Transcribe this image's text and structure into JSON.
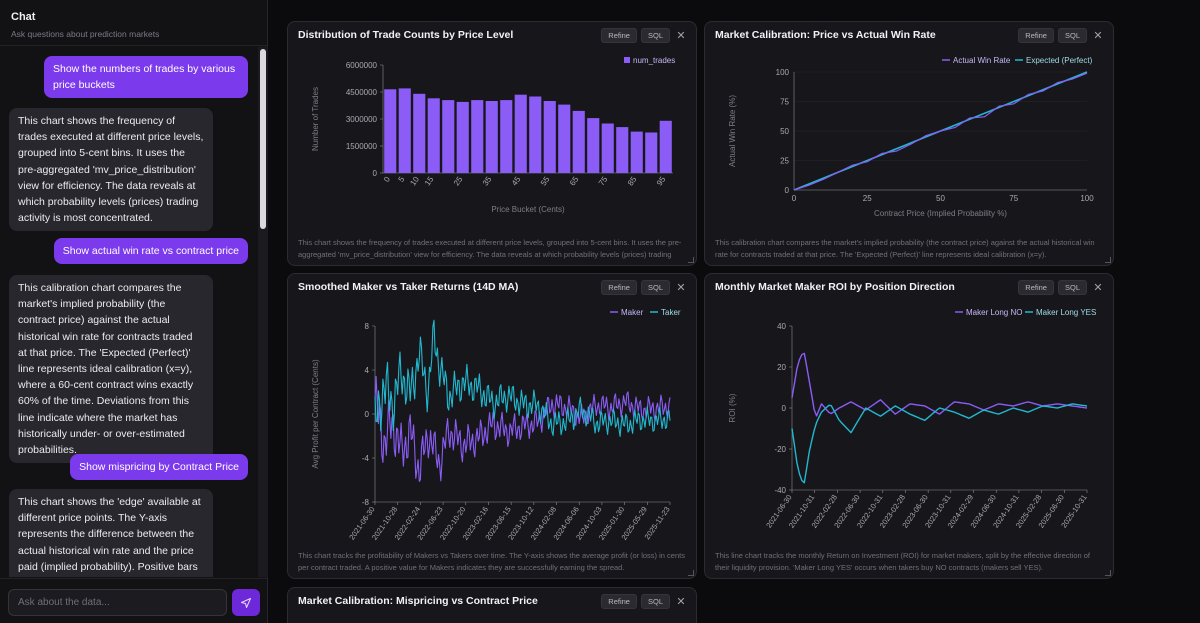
{
  "chat": {
    "title": "Chat",
    "subtitle": "Ask questions about prediction markets",
    "input_placeholder": "Ask about the data...",
    "messages": [
      {
        "role": "user",
        "text": "Show the numbers of trades by various price buckets"
      },
      {
        "role": "assistant",
        "text": "This chart shows the frequency of trades executed at different price levels, grouped into 5-cent bins. It uses the pre-aggregated 'mv_price_distribution' view for efficiency. The data reveals at which probability levels (prices) trading activity is most concentrated."
      },
      {
        "role": "user",
        "text": "Show actual win rate vs contract price"
      },
      {
        "role": "assistant",
        "text": "This calibration chart compares the market's implied probability (the contract price) against the actual historical win rate for contracts traded at that price. The 'Expected (Perfect)' line represents ideal calibration (x=y), where a 60-cent contract wins exactly 60% of the time. Deviations from this line indicate where the market has historically under- or over-estimated probabilities."
      },
      {
        "role": "user",
        "text": "Show mispricing by Contract Price"
      },
      {
        "role": "assistant",
        "text": "This chart shows the 'edge' available at different price points. The Y-axis represents the difference between the actual historical win rate and the price paid (implied probability). Positive bars indicate underpriced contracts, which"
      }
    ]
  },
  "panel_buttons": {
    "refine": "Refine",
    "sql": "SQL",
    "close": "✕"
  },
  "panels": [
    {
      "title": "Distribution of Trade Counts by Price Level",
      "description": "This chart shows the frequency of trades executed at different price levels, grouped into 5-cent bins. It uses the pre-aggregated 'mv_price_distribution' view for efficiency. The data reveals at which probability levels (prices) trading activity is most concentrated."
    },
    {
      "title": "Market Calibration: Price vs Actual Win Rate",
      "description": "This calibration chart compares the market's implied probability (the contract price) against the actual historical win rate for contracts traded at that price. The 'Expected (Perfect)' line represents ideal calibration (x=y)."
    },
    {
      "title": "Smoothed Maker vs Taker Returns (14D MA)",
      "description": "This chart tracks the profitability of Makers vs Takers over time. The Y-axis shows the average profit (or loss) in cents per contract traded. A positive value for Makers indicates they are successfully earning the spread."
    },
    {
      "title": "Monthly Market Maker ROI by Position Direction",
      "description": "This line chart tracks the monthly Return on Investment (ROI) for market makers, split by the effective direction of their liquidity provision. 'Maker Long YES' occurs when takers buy NO contracts (makers sell YES)."
    },
    {
      "title": "Market Calibration: Mispricing vs Contract Price",
      "description": ""
    }
  ],
  "colors": {
    "purple": "#8b5cf6",
    "cyan": "#22b8cf",
    "accent": "#7c3aed"
  },
  "chart_data": [
    {
      "type": "bar",
      "title": "Distribution of Trade Counts by Price Level",
      "xlabel": "Price Bucket (Cents)",
      "ylabel": "Number of Trades",
      "legend": [
        "num_trades"
      ],
      "categories": [
        "0",
        "5",
        "10",
        "15",
        "20",
        "25",
        "30",
        "35",
        "40",
        "45",
        "50",
        "55",
        "60",
        "65",
        "70",
        "75",
        "80",
        "85",
        "90",
        "95"
      ],
      "tick_labels": [
        "0",
        "5",
        "10",
        "15",
        "25",
        "35",
        "45",
        "55",
        "65",
        "75",
        "85",
        "95"
      ],
      "yticks": [
        "0",
        "1500000",
        "3000000",
        "4500000",
        "6000000"
      ],
      "values": [
        4650000,
        4700000,
        4400000,
        4150000,
        4050000,
        3950000,
        4050000,
        4000000,
        4050000,
        4350000,
        4250000,
        4000000,
        3800000,
        3450000,
        3050000,
        2750000,
        2550000,
        2300000,
        2250000,
        2900000
      ],
      "ylim": [
        0,
        6000000
      ]
    },
    {
      "type": "line",
      "title": "Market Calibration: Price vs Actual Win Rate",
      "xlabel": "Contract Price (Implied Probability %)",
      "ylabel": "Actual Win Rate (%)",
      "xticks": [
        "0",
        "25",
        "50",
        "75",
        "100"
      ],
      "yticks": [
        "0",
        "25",
        "50",
        "75",
        "100"
      ],
      "xlim": [
        0,
        100
      ],
      "ylim": [
        0,
        100
      ],
      "series": [
        {
          "name": "Actual Win Rate",
          "x": [
            0,
            5,
            10,
            15,
            20,
            25,
            30,
            35,
            40,
            45,
            50,
            55,
            60,
            65,
            70,
            75,
            80,
            85,
            90,
            95,
            100
          ],
          "y": [
            0,
            4,
            9,
            15,
            21,
            24,
            31,
            33,
            39,
            46,
            50,
            53,
            61,
            62,
            71,
            73,
            81,
            84,
            91,
            94,
            99
          ]
        },
        {
          "name": "Expected (Perfect)",
          "x": [
            0,
            100
          ],
          "y": [
            0,
            100
          ]
        }
      ]
    },
    {
      "type": "line",
      "title": "Smoothed Maker vs Taker Returns (14D MA)",
      "ylabel": "Avg Profit per Contract (Cents)",
      "xticks": [
        "2021-06-30",
        "2021-10-28",
        "2022-02-24",
        "2022-06-23",
        "2022-10-20",
        "2023-02-16",
        "2023-06-15",
        "2023-10-12",
        "2024-02-08",
        "2024-06-06",
        "2024-10-03",
        "2025-01-30",
        "2025-05-29",
        "2025-11-23"
      ],
      "yticks": [
        "-8",
        "-4",
        "0",
        "4",
        "8"
      ],
      "ylim": [
        -8,
        8
      ],
      "series": [
        {
          "name": "Maker",
          "x": [
            0,
            0.03,
            0.06,
            0.09,
            0.12,
            0.15,
            0.18,
            0.2,
            0.22,
            0.25,
            0.3,
            0.35,
            0.4,
            0.45,
            0.5,
            0.55,
            0.6,
            0.65,
            0.7,
            0.75,
            0.8,
            0.85,
            0.9,
            0.95,
            1.0
          ],
          "y": [
            1.2,
            -2.5,
            -0.8,
            -3.5,
            -1.6,
            -5.2,
            -1.8,
            -3.2,
            -4.5,
            -1.5,
            -2.8,
            -2.2,
            -0.9,
            -1.6,
            -1.1,
            -0.8,
            0.9,
            0.6,
            -0.4,
            0.8,
            0.6,
            1.1,
            0.4,
            0.5,
            0.7
          ]
        },
        {
          "name": "Taker",
          "x": [
            0,
            0.03,
            0.06,
            0.09,
            0.12,
            0.15,
            0.18,
            0.2,
            0.22,
            0.25,
            0.3,
            0.35,
            0.4,
            0.45,
            0.5,
            0.55,
            0.6,
            0.65,
            0.7,
            0.75,
            0.8,
            0.85,
            0.9,
            0.95,
            1.0
          ],
          "y": [
            -1.2,
            2.6,
            0.9,
            3.8,
            1.7,
            5.5,
            2.0,
            7.2,
            4.2,
            1.6,
            2.9,
            2.3,
            1.0,
            1.7,
            0.9,
            0.8,
            -0.9,
            -0.7,
            0.4,
            -0.8,
            -0.6,
            -1.0,
            -0.5,
            -0.6,
            -0.4
          ]
        }
      ]
    },
    {
      "type": "line",
      "title": "Monthly Market Maker ROI by Position Direction",
      "ylabel": "ROI (%)",
      "xticks": [
        "2021-06-30",
        "2021-10-31",
        "2022-02-28",
        "2022-06-30",
        "2022-10-31",
        "2023-02-28",
        "2023-06-30",
        "2023-10-31",
        "2024-02-29",
        "2024-06-30",
        "2024-10-31",
        "2025-02-28",
        "2025-06-30",
        "2025-10-31"
      ],
      "yticks": [
        "-40",
        "-20",
        "0",
        "20",
        "40"
      ],
      "ylim": [
        -40,
        40
      ],
      "series": [
        {
          "name": "Maker Long NO",
          "x": [
            0,
            0.02,
            0.04,
            0.06,
            0.08,
            0.1,
            0.13,
            0.16,
            0.2,
            0.25,
            0.3,
            0.35,
            0.4,
            0.45,
            0.5,
            0.55,
            0.6,
            0.65,
            0.7,
            0.75,
            0.8,
            0.85,
            0.9,
            0.95,
            1.0
          ],
          "y": [
            5,
            22,
            28,
            12,
            -5,
            2,
            -3,
            0,
            3,
            -1,
            4,
            -3,
            2,
            1,
            -3,
            3,
            2,
            -1,
            2,
            1,
            3,
            1,
            2,
            1,
            0
          ]
        },
        {
          "name": "Maker Long YES",
          "x": [
            0,
            0.02,
            0.04,
            0.06,
            0.08,
            0.1,
            0.13,
            0.16,
            0.2,
            0.25,
            0.3,
            0.35,
            0.4,
            0.45,
            0.5,
            0.55,
            0.6,
            0.65,
            0.7,
            0.75,
            0.8,
            0.85,
            0.9,
            0.95,
            1.0
          ],
          "y": [
            -10,
            -30,
            -38,
            -20,
            -8,
            -2,
            2,
            -6,
            -12,
            0,
            -4,
            1,
            -3,
            -6,
            0,
            -2,
            -5,
            -1,
            -3,
            0,
            -2,
            1,
            0,
            2,
            1
          ]
        }
      ]
    }
  ]
}
